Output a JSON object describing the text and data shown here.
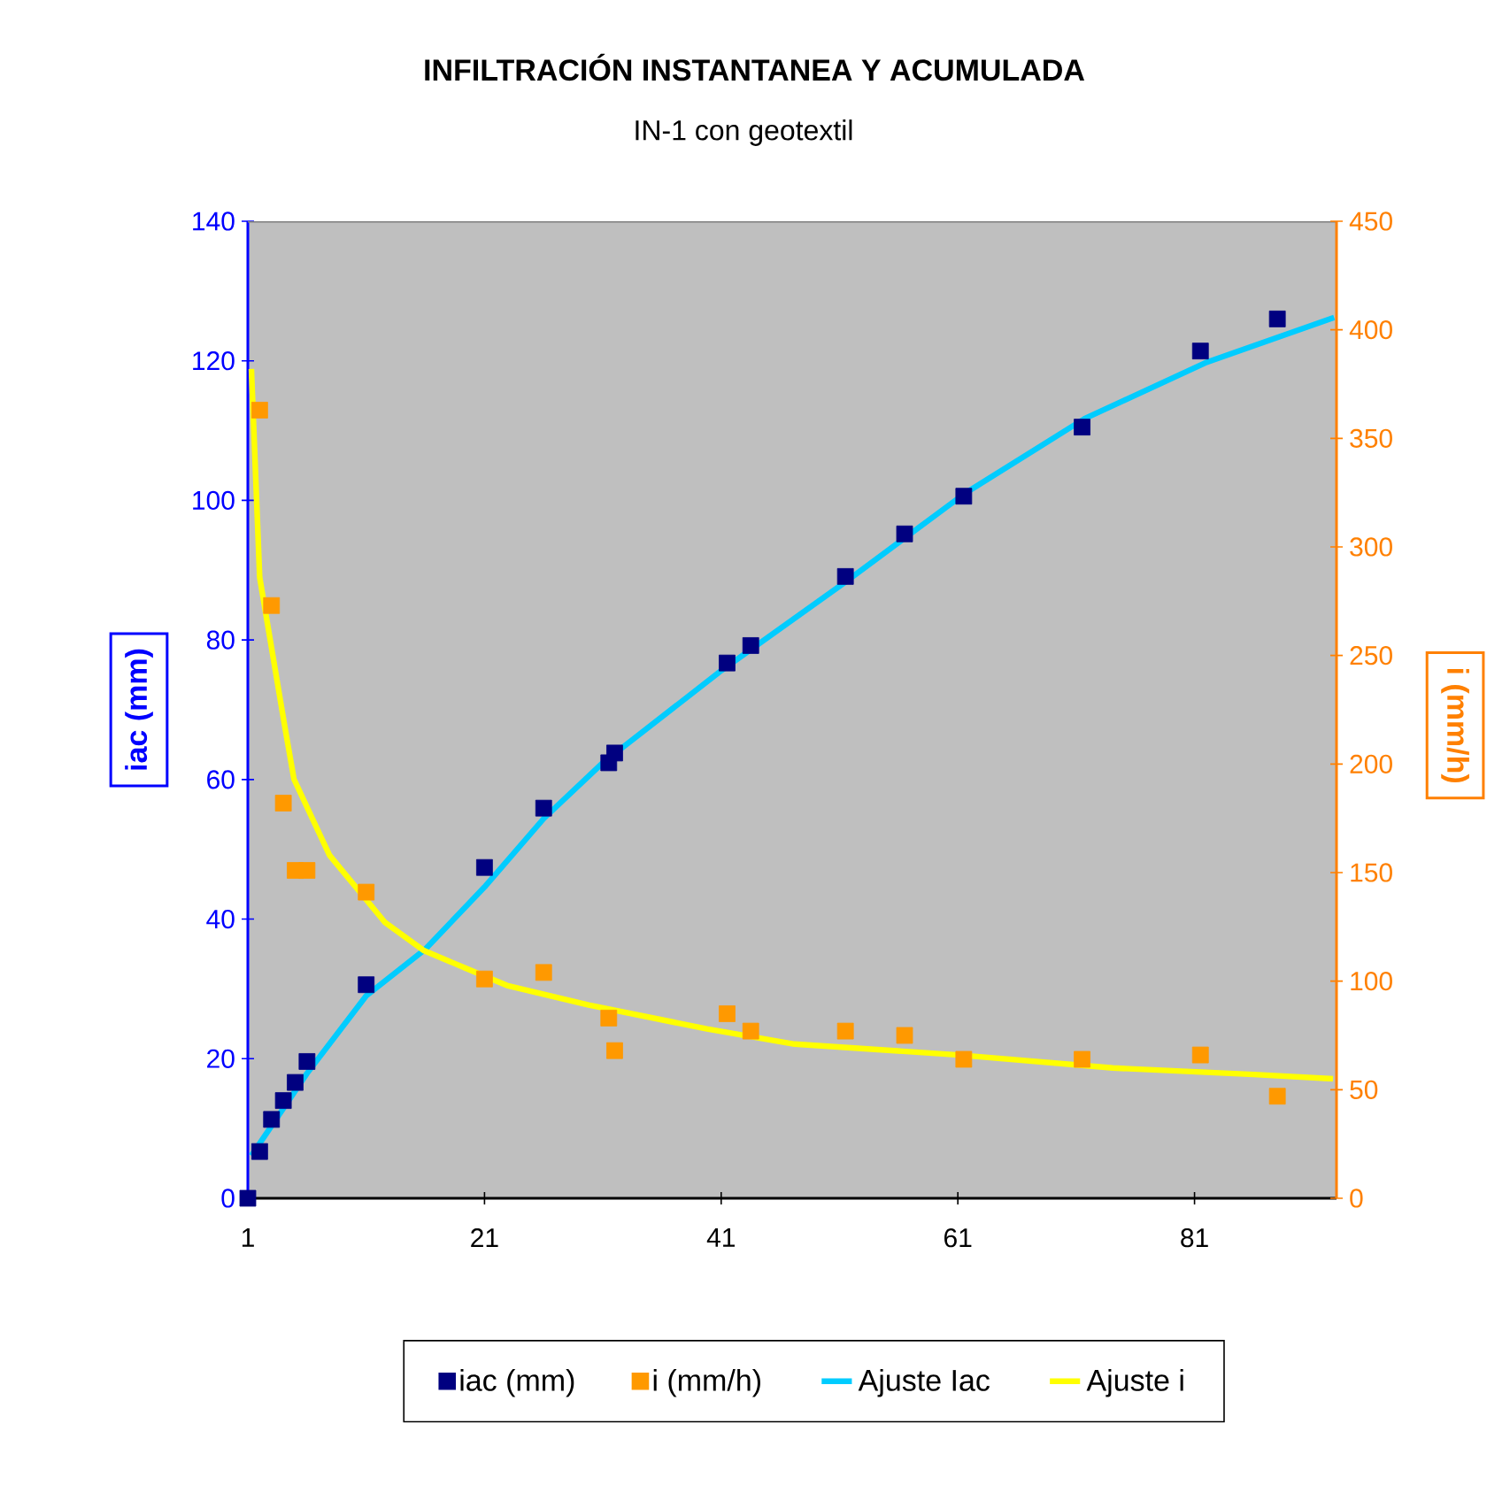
{
  "chart_data": {
    "type": "scatter",
    "title": "INFILTRACIÓN INSTANTANEA Y ACUMULADA",
    "subtitle": "IN-1 con geotextil",
    "ylabel": "iac (mm)",
    "y2label": "i (mm/h)",
    "xlim": [
      1,
      93
    ],
    "xticks": [
      1,
      21,
      41,
      61,
      81
    ],
    "ylim": [
      0,
      140
    ],
    "yticks": [
      0,
      20,
      40,
      60,
      80,
      100,
      120,
      140
    ],
    "y2lim": [
      0,
      450
    ],
    "y2ticks": [
      0,
      50,
      100,
      150,
      200,
      250,
      300,
      350,
      400,
      450
    ],
    "legend": "bottom",
    "marker": "square",
    "line_style": "solid",
    "series": [
      {
        "name": "iac (mm)",
        "color": "#000080",
        "x": [
          1,
          2,
          3,
          4,
          5,
          6,
          11,
          21,
          26,
          31.5,
          32,
          41.5,
          43.5,
          51.5,
          56.5,
          61.5,
          71.5,
          81.5,
          88
        ],
        "values": [
          0,
          6.7,
          11.3,
          14,
          16.6,
          19.6,
          30.6,
          47.4,
          55.9,
          62.4,
          63.8,
          76.7,
          79.2,
          89.1,
          95.2,
          100.6,
          110.5,
          121.4,
          126
        ]
      },
      {
        "name": "i (mm/h)",
        "color": "#ff9900",
        "axis": "y2",
        "x": [
          2,
          3,
          4,
          5,
          6,
          11,
          21,
          26,
          31.5,
          32,
          41.5,
          43.5,
          51.5,
          56.5,
          61.5,
          71.5,
          81.5,
          88
        ],
        "values": [
          363,
          273,
          182,
          151,
          151,
          141,
          101,
          104,
          83,
          68,
          85,
          77,
          77,
          75,
          64,
          64,
          66,
          47
        ]
      },
      {
        "name": "Ajuste Iac",
        "color": "#00ccff",
        "type": "line",
        "marker": "none",
        "x": [
          1.3,
          6,
          11,
          16,
          21,
          26,
          31,
          41,
          51.5,
          61.6,
          71.7,
          81.9,
          92.8
        ],
        "values": [
          6.1,
          17.9,
          29,
          35.7,
          44.6,
          54.4,
          62.4,
          75.6,
          88.3,
          101,
          111.7,
          119.7,
          126.2
        ]
      },
      {
        "name": "Ajuste i",
        "color": "#ffff00",
        "type": "line",
        "marker": "none",
        "axis": "y2",
        "x": [
          1.3,
          2,
          4.1,
          4.9,
          7.9,
          12.6,
          15.9,
          19.4,
          22.9,
          29.8,
          39.8,
          47.2,
          61.1,
          74.1,
          86,
          92.7
        ],
        "values": [
          382,
          286,
          218,
          193,
          158,
          127,
          114,
          106,
          98,
          89,
          78,
          71,
          66,
          60,
          57,
          55
        ]
      }
    ]
  }
}
